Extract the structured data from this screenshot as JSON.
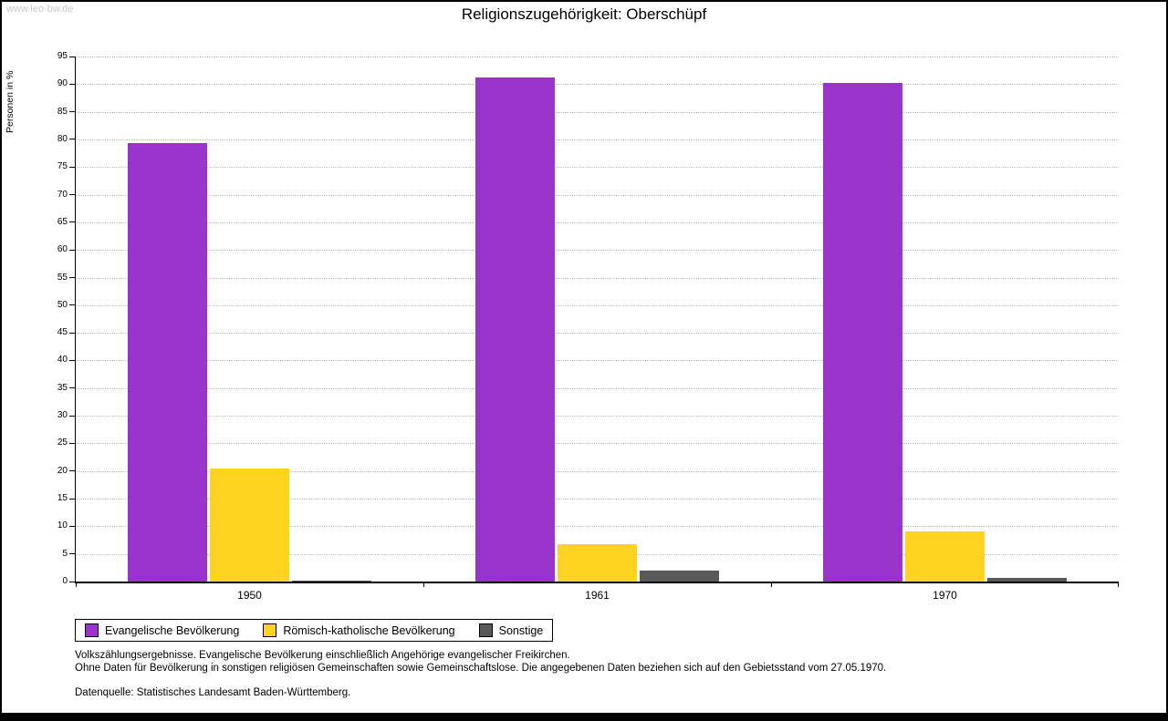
{
  "watermark": "www.leo-bw.de",
  "title": "Religionszugehörigkeit: Oberschüpf",
  "ylabel": "Personen in %",
  "footnotes": {
    "line1": "Volkszählungsergebnisse. Evangelische Bevölkerung einschließlich Angehörige evangelischer Freikirchen.",
    "line2": "Ohne Daten für Bevölkerung in sonstigen religiösen Gemeinschaften sowie Gemeinschaftslose. Die angegebenen Daten beziehen sich auf den Gebietsstand vom 27.05.1970.",
    "line3": "Datenquelle: Statistisches Landesamt Baden-Württemberg."
  },
  "chart_data": {
    "type": "bar",
    "title": "Religionszugehörigkeit: Oberschüpf",
    "categories": [
      "1950",
      "1961",
      "1970"
    ],
    "series": [
      {
        "name": "Evangelische Bevölkerung",
        "color": "#9933cc",
        "values": [
          79.4,
          91.2,
          90.2
        ]
      },
      {
        "name": "Römisch-katholische Bevölkerung",
        "color": "#ffd320",
        "values": [
          20.4,
          6.7,
          9.1
        ]
      },
      {
        "name": "Sonstige",
        "color": "#595959",
        "values": [
          0.2,
          2.0,
          0.7
        ]
      }
    ],
    "xlabel": "",
    "ylabel": "Personen in %",
    "ylim": [
      0,
      95
    ],
    "ytick_step": 5,
    "grid": true,
    "legend_position": "bottom-left"
  }
}
